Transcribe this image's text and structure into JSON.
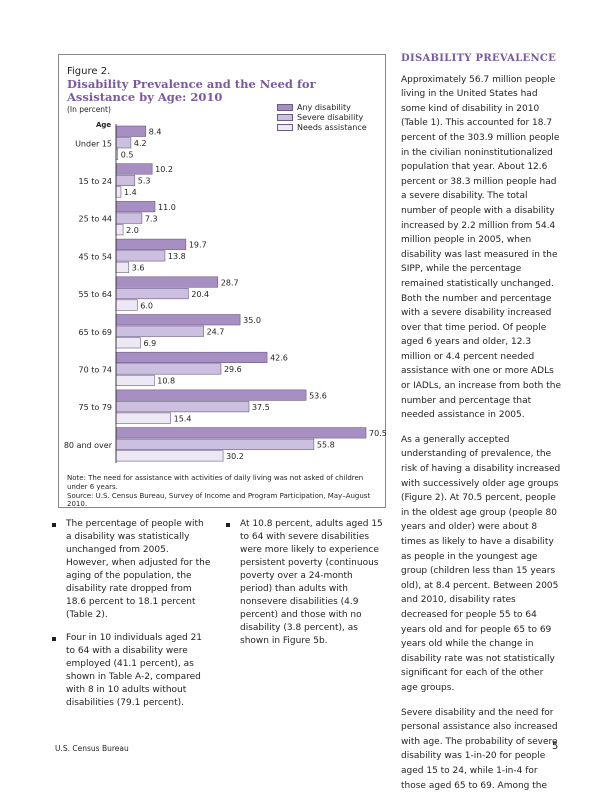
{
  "figure": {
    "label": "Figure 2.",
    "title": "Disability Prevalence and the Need for Assistance by Age: 2010",
    "units": "(In percent)",
    "age_heading": "Age",
    "note": "Note: The need for assistance with activities of daily living was not asked of children under 6 years.",
    "source": "Source: U.S. Census Bureau, Survey of Income and Program Participation, May–August 2010."
  },
  "chart_data": {
    "type": "bar",
    "orientation": "horizontal",
    "title": "Disability Prevalence and the Need for Assistance by Age: 2010",
    "categories": [
      "Under 15",
      "15 to 24",
      "25 to 44",
      "45 to 54",
      "55 to 64",
      "65 to 69",
      "70 to 74",
      "75 to 79",
      "80 and over"
    ],
    "series": [
      {
        "name": "Any disability",
        "color": "#a78fc4",
        "values": [
          8.4,
          10.2,
          11.0,
          19.7,
          28.7,
          35.0,
          42.6,
          53.6,
          70.5
        ]
      },
      {
        "name": "Severe disability",
        "color": "#cdbfe0",
        "values": [
          4.2,
          5.3,
          7.3,
          13.8,
          20.4,
          24.7,
          29.6,
          37.5,
          55.8
        ]
      },
      {
        "name": "Needs assistance",
        "color": "#ede8f4",
        "values": [
          0.5,
          1.4,
          2.0,
          3.6,
          6.0,
          6.9,
          10.8,
          15.4,
          30.2
        ]
      }
    ],
    "value_labels": [
      [
        "8.4",
        "10.2",
        "11.0",
        "19.7",
        "28.7",
        "35.0",
        "42.6",
        "53.6",
        "70.5"
      ],
      [
        "4.2",
        "5.3",
        "7.3",
        "13.8",
        "20.4",
        "24.7",
        "29.6",
        "37.5",
        "55.8"
      ],
      [
        "0.5",
        "1.4",
        "2.0",
        "3.6",
        "6.0",
        "6.9",
        "10.8",
        "15.4",
        "30.2"
      ]
    ],
    "xlim": [
      0,
      70.5
    ],
    "legend_position": "top-right",
    "grid": false
  },
  "right_column": {
    "heading": "DISABILITY PREVALENCE",
    "p1": "Approximately 56.7 million people living in the United States had some kind of disability in 2010 (Table 1). This accounted for 18.7 percent of the 303.9 million people in the civilian noninstitutionalized population that year. About 12.6 percent or 38.3 million people had a severe disability. The total number of people with a disability increased by 2.2 million from 54.4 million people in 2005, when disability was last measured in the SIPP, while the percentage remained statistically unchanged. Both the number and percentage with a severe disability increased over that time period. Of people aged 6 years and older, 12.3 million or 4.4 percent needed assistance with one or more ADLs or IADLs, an increase from both the number and percentage that needed assistance in 2005.",
    "p2": "As a generally accepted understanding of prevalence, the risk of having a disability increased with successively older age groups (Figure 2). At 70.5 percent, people in the oldest age group (people 80 years and older) were about 8 times as likely to have a disability as people in the youngest age group (children less than 15 years old), at 8.4 percent. Between 2005 and 2010, disability rates decreased for people 55 to 64 years old and for people 65 to 69 years old while the change in disability rate was not statistically significant for each of the other age groups.",
    "p3": "Severe disability and the need for personal assistance also increased with age. The probability of severe disability was 1-in-20 for people aged 15 to 24, while 1-in-4 for those aged 65 to 69. Among the"
  },
  "bullets_left": [
    "The percentage of people with a disability was statistically unchanged from 2005. However, when adjusted for the aging of the population, the disability rate dropped from 18.6 percent to 18.1 percent (Table 2).",
    "Four in 10 individuals aged 21 to 64 with a disability were employed (41.1 percent), as shown in Table A-2, compared with 8 in 10 adults without disabilities (79.1 percent)."
  ],
  "bullets_mid": [
    "At 10.8 percent, adults aged 15 to 64 with severe disabilities were more likely to experience persistent poverty (continuous poverty over a 24-month period) than adults with nonsevere disabilities (4.9 percent) and those with no disability (3.8 percent), as shown in Figure 5b."
  ],
  "footer": {
    "agency": "U.S. Census Bureau",
    "page_number": "5"
  }
}
